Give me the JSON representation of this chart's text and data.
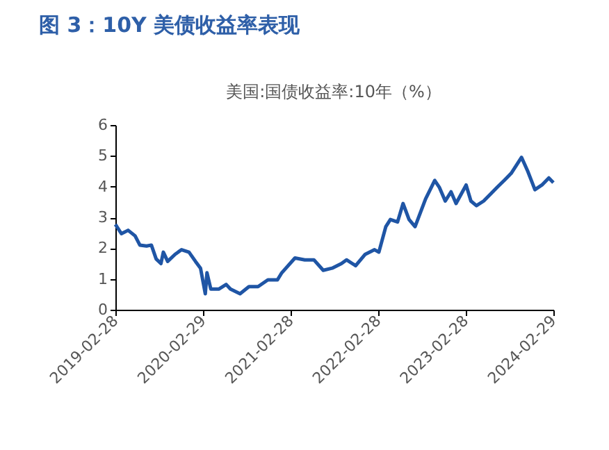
{
  "chart_data": {
    "type": "line",
    "title": "图 3：10Y 美债收益率表现",
    "subtitle": "美国:国债收益率:10年（%）",
    "x": [
      "2019-02-28",
      "2019-03-25",
      "2019-04-22",
      "2019-05-21",
      "2019-06-10",
      "2019-07-08",
      "2019-07-28",
      "2019-08-17",
      "2019-09-06",
      "2019-09-16",
      "2019-10-04",
      "2019-11-04",
      "2019-12-01",
      "2020-01-01",
      "2020-01-28",
      "2020-02-18",
      "2020-03-09",
      "2020-03-16",
      "2020-04-01",
      "2020-05-04",
      "2020-06-04",
      "2020-06-22",
      "2020-08-01",
      "2020-09-07",
      "2020-10-15",
      "2020-11-25",
      "2021-01-04",
      "2021-01-22",
      "2021-03-18",
      "2021-04-28",
      "2021-06-05",
      "2021-07-14",
      "2021-08-20",
      "2021-09-28",
      "2021-10-19",
      "2021-11-26",
      "2022-01-05",
      "2022-02-13",
      "2022-03-03",
      "2022-04-01",
      "2022-04-20",
      "2022-05-20",
      "2022-06-12",
      "2022-07-07",
      "2022-08-01",
      "2022-09-14",
      "2022-10-22",
      "2022-11-10",
      "2022-12-05",
      "2022-12-29",
      "2023-01-19",
      "2023-03-02",
      "2023-03-22",
      "2023-04-14",
      "2023-05-14",
      "2023-06-11",
      "2023-07-10",
      "2023-08-08",
      "2023-09-06",
      "2023-10-19",
      "2023-11-14",
      "2023-12-14",
      "2024-01-12",
      "2024-02-10",
      "2024-02-29"
    ],
    "series": [
      {
        "color": "#1f55a5",
        "values": [
          2.77,
          2.47,
          2.58,
          2.4,
          2.1,
          2.07,
          2.1,
          1.65,
          1.5,
          1.87,
          1.57,
          1.8,
          1.95,
          1.87,
          1.57,
          1.35,
          0.52,
          1.2,
          0.67,
          0.67,
          0.82,
          0.67,
          0.52,
          0.75,
          0.75,
          0.97,
          0.97,
          1.2,
          1.68,
          1.62,
          1.62,
          1.28,
          1.35,
          1.5,
          1.62,
          1.43,
          1.8,
          1.95,
          1.87,
          2.7,
          2.93,
          2.85,
          3.45,
          2.93,
          2.7,
          3.6,
          4.2,
          3.98,
          3.53,
          3.83,
          3.45,
          4.05,
          3.53,
          3.38,
          3.53,
          3.75,
          3.98,
          4.2,
          4.43,
          4.95,
          4.5,
          3.9,
          4.05,
          4.28,
          4.13
        ]
      }
    ],
    "xlim": [
      "2019-02-28",
      "2024-02-29"
    ],
    "xticks": [
      "2019-02-28",
      "2020-02-29",
      "2021-02-28",
      "2022-02-28",
      "2023-02-28",
      "2024-02-29"
    ],
    "ylim": [
      0,
      6
    ],
    "yticks": [
      0,
      1,
      2,
      3,
      4,
      5,
      6
    ],
    "grid": false,
    "marker": "none",
    "line_style": "solid"
  }
}
